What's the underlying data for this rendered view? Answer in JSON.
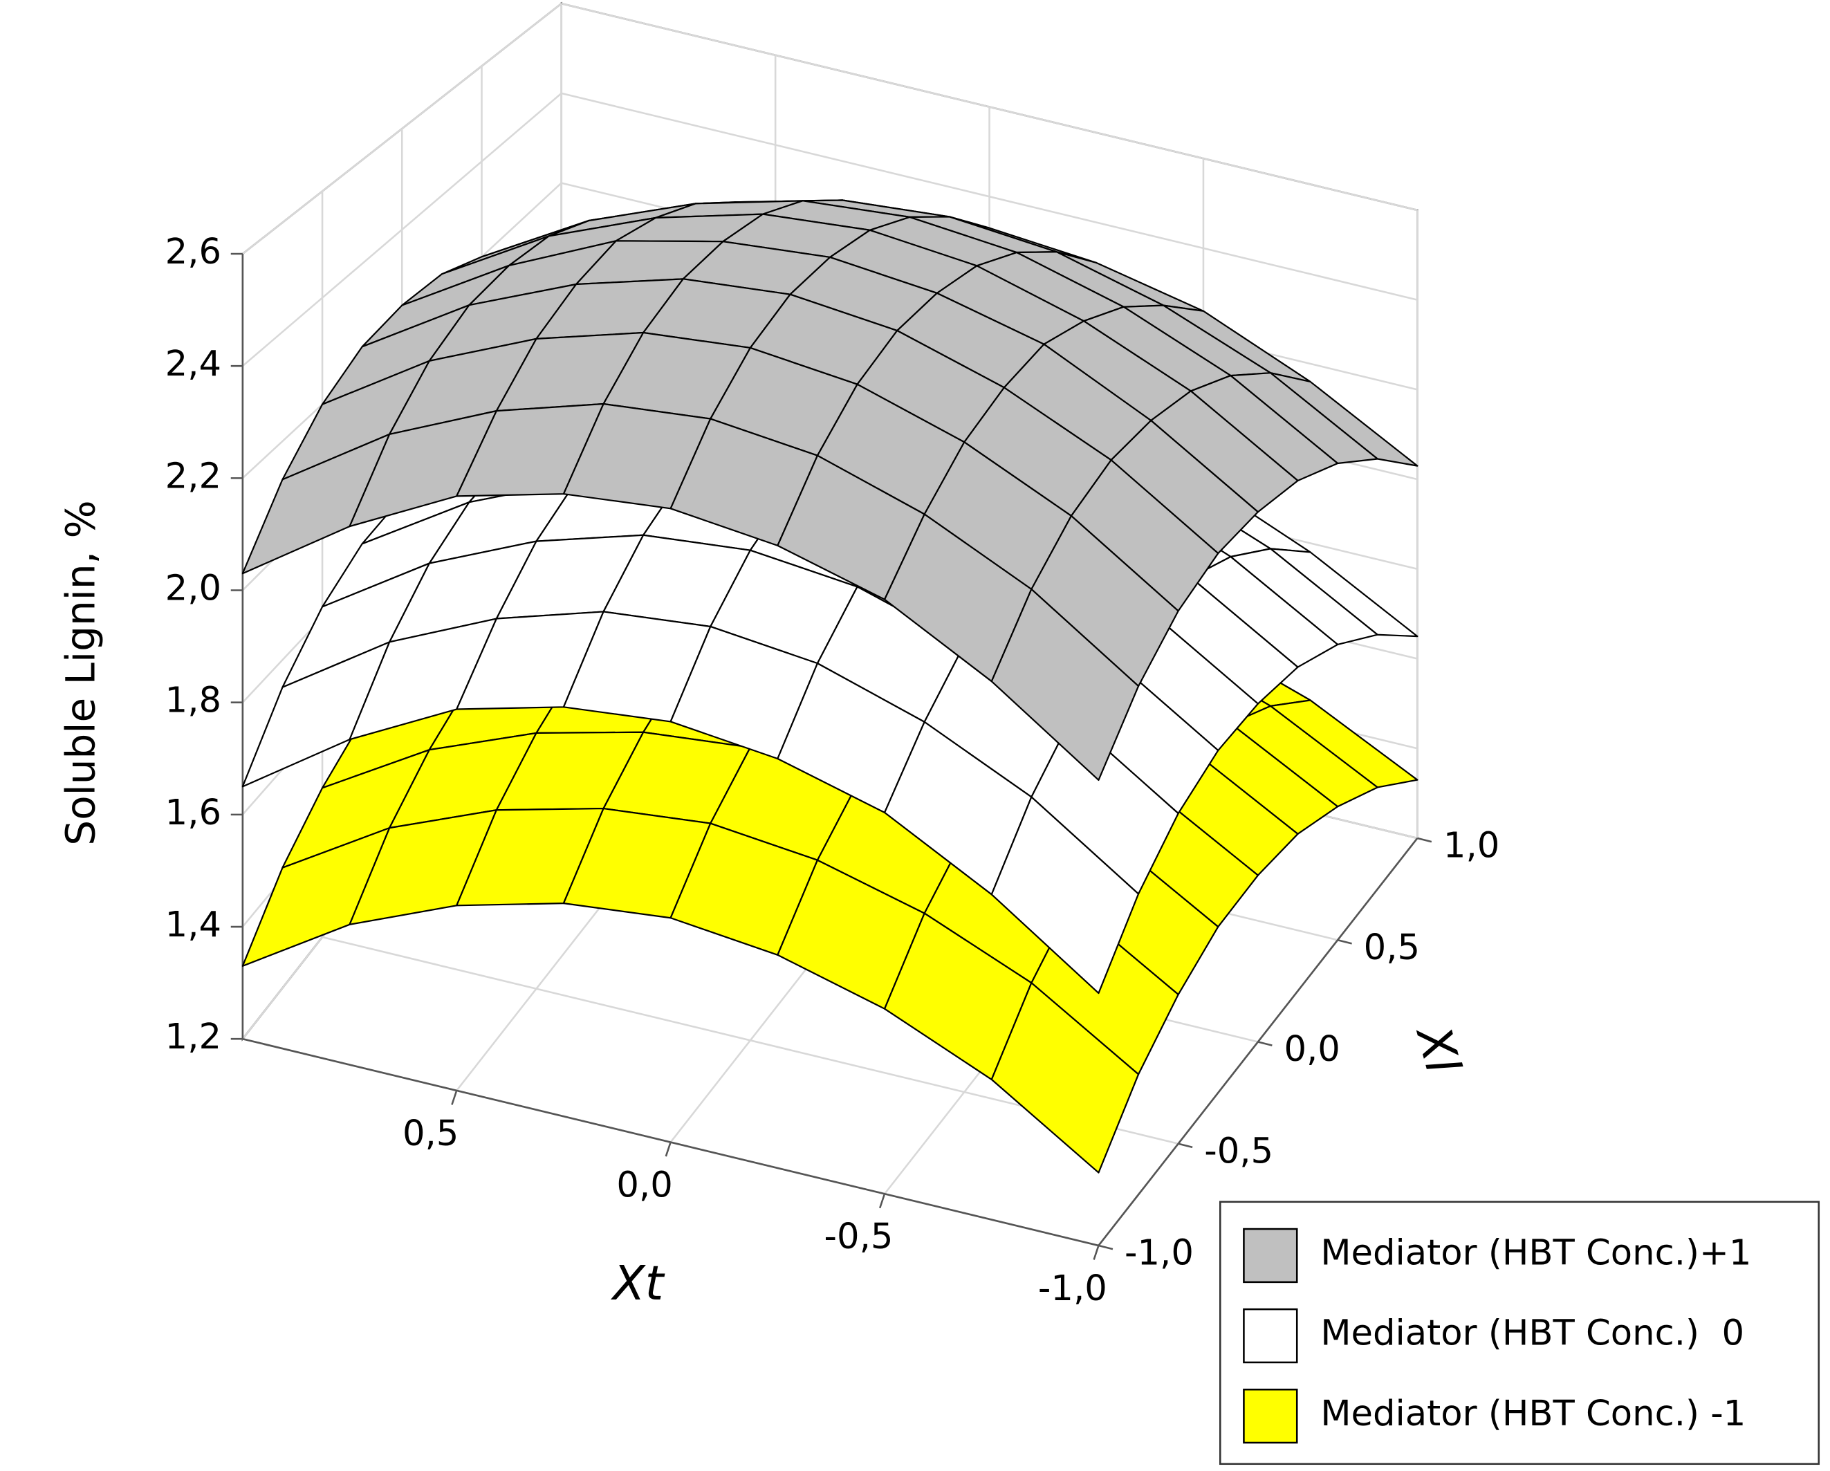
{
  "chart_data": {
    "type": "surface3d",
    "x_label": "Xt",
    "y_label": "Xl",
    "z_label": "Soluble Lignin, %",
    "x": [
      -1,
      -0.75,
      -0.5,
      -0.25,
      0,
      0.25,
      0.5,
      0.75,
      1
    ],
    "y": [
      -1,
      -0.75,
      -0.5,
      -0.25,
      0,
      0.25,
      0.5,
      0.75,
      1
    ],
    "xlim": [
      -1,
      1
    ],
    "ylim": [
      -1,
      1
    ],
    "zlim": [
      1.2,
      2.6
    ],
    "xticks": [
      {
        "value": -1,
        "label": "-1,0"
      },
      {
        "value": -0.5,
        "label": "-0,5"
      },
      {
        "value": 0,
        "label": "0,0"
      },
      {
        "value": 0.5,
        "label": "0,5"
      }
    ],
    "yticks": [
      {
        "value": -1,
        "label": "-1,0"
      },
      {
        "value": -0.5,
        "label": "-0,5"
      },
      {
        "value": 0,
        "label": "0,0"
      },
      {
        "value": 0.5,
        "label": "0,5"
      },
      {
        "value": 1,
        "label": "1,0"
      }
    ],
    "zticks": [
      {
        "value": 1.2,
        "label": "1,2"
      },
      {
        "value": 1.4,
        "label": "1,4"
      },
      {
        "value": 1.6,
        "label": "1,6"
      },
      {
        "value": 1.8,
        "label": "1,8"
      },
      {
        "value": 2.0,
        "label": "2,0"
      },
      {
        "value": 2.2,
        "label": "2,2"
      },
      {
        "value": 2.4,
        "label": "2,4"
      },
      {
        "value": 2.6,
        "label": "2,6"
      }
    ],
    "grid": true,
    "series": [
      {
        "name": "Mediator (HBT Conc.) -1",
        "color": "#ffff00",
        "values": [
          [
            1.33,
            1.45,
            1.53,
            1.58,
            1.6,
            1.58,
            1.53,
            1.45,
            1.33
          ],
          [
            1.42,
            1.54,
            1.62,
            1.67,
            1.69,
            1.67,
            1.62,
            1.54,
            1.42
          ],
          [
            1.48,
            1.6,
            1.68,
            1.73,
            1.75,
            1.73,
            1.68,
            1.6,
            1.48
          ],
          [
            1.52,
            1.64,
            1.72,
            1.77,
            1.79,
            1.77,
            1.72,
            1.64,
            1.52
          ],
          [
            1.53,
            1.65,
            1.73,
            1.78,
            1.8,
            1.78,
            1.73,
            1.65,
            1.53
          ],
          [
            1.52,
            1.64,
            1.72,
            1.77,
            1.79,
            1.77,
            1.72,
            1.64,
            1.52
          ],
          [
            1.48,
            1.6,
            1.68,
            1.73,
            1.75,
            1.73,
            1.68,
            1.6,
            1.48
          ],
          [
            1.42,
            1.54,
            1.62,
            1.67,
            1.69,
            1.67,
            1.62,
            1.54,
            1.42
          ],
          [
            1.33,
            1.45,
            1.53,
            1.58,
            1.6,
            1.58,
            1.53,
            1.45,
            1.33
          ]
        ]
      },
      {
        "name": "Mediator (HBT Conc.)  0",
        "color": "#ffffff",
        "values": [
          [
            1.65,
            1.78,
            1.88,
            1.93,
            1.95,
            1.93,
            1.88,
            1.78,
            1.65
          ],
          [
            1.75,
            1.88,
            1.97,
            2.03,
            2.05,
            2.03,
            1.97,
            1.88,
            1.75
          ],
          [
            1.82,
            1.95,
            2.04,
            2.1,
            2.12,
            2.1,
            2.04,
            1.95,
            1.82
          ],
          [
            1.86,
            1.99,
            2.08,
            2.14,
            2.16,
            2.14,
            2.08,
            1.99,
            1.86
          ],
          [
            1.87,
            2.0,
            2.1,
            2.15,
            2.17,
            2.15,
            2.1,
            2.0,
            1.87
          ],
          [
            1.86,
            1.99,
            2.08,
            2.14,
            2.16,
            2.14,
            2.08,
            1.99,
            1.86
          ],
          [
            1.82,
            1.95,
            2.04,
            2.1,
            2.12,
            2.1,
            2.04,
            1.95,
            1.82
          ],
          [
            1.75,
            1.88,
            1.97,
            2.03,
            2.05,
            2.03,
            1.97,
            1.88,
            1.75
          ],
          [
            1.65,
            1.78,
            1.88,
            1.93,
            1.95,
            1.93,
            1.88,
            1.78,
            1.65
          ]
        ]
      },
      {
        "name": "Mediator (HBT Conc.)+1",
        "color": "#c0c0c0",
        "values": [
          [
            2.03,
            2.16,
            2.26,
            2.31,
            2.33,
            2.31,
            2.26,
            2.16,
            2.03
          ],
          [
            2.13,
            2.26,
            2.35,
            2.41,
            2.43,
            2.41,
            2.35,
            2.26,
            2.13
          ],
          [
            2.2,
            2.33,
            2.42,
            2.48,
            2.5,
            2.48,
            2.42,
            2.33,
            2.2
          ],
          [
            2.24,
            2.37,
            2.46,
            2.52,
            2.54,
            2.52,
            2.46,
            2.37,
            2.24
          ],
          [
            2.25,
            2.38,
            2.48,
            2.53,
            2.55,
            2.53,
            2.48,
            2.38,
            2.25
          ],
          [
            2.24,
            2.37,
            2.46,
            2.52,
            2.54,
            2.52,
            2.46,
            2.37,
            2.24
          ],
          [
            2.2,
            2.33,
            2.42,
            2.48,
            2.5,
            2.48,
            2.42,
            2.33,
            2.2
          ],
          [
            2.13,
            2.26,
            2.35,
            2.41,
            2.43,
            2.41,
            2.35,
            2.26,
            2.13
          ],
          [
            2.03,
            2.16,
            2.26,
            2.31,
            2.33,
            2.31,
            2.26,
            2.16,
            2.03
          ]
        ]
      }
    ]
  }
}
